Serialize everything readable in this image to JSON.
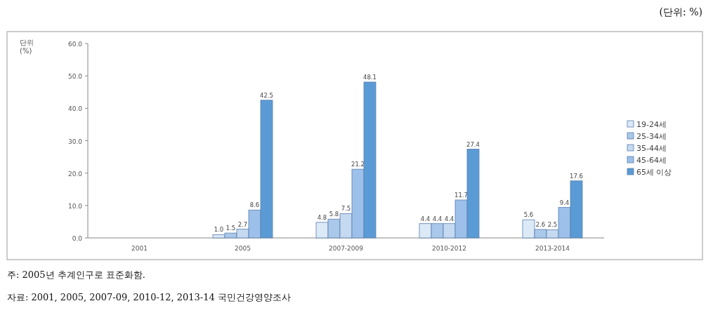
{
  "chart_data": {
    "type": "bar",
    "categories": [
      "2001",
      "2005",
      "2007-2009",
      "2010-2012",
      "2013-2014"
    ],
    "series": [
      {
        "name": "19-24세",
        "color": "#dce9f7",
        "values": [
          null,
          1.0,
          4.8,
          4.4,
          5.6
        ],
        "value_labels": [
          null,
          "1.0",
          "4.8",
          "4.4",
          "5.6"
        ]
      },
      {
        "name": "25-34세",
        "color": "#a9c8ea",
        "values": [
          null,
          1.5,
          5.8,
          4.4,
          2.6
        ],
        "value_labels": [
          null,
          "1.5",
          "5.8",
          "4.4",
          "2.6"
        ]
      },
      {
        "name": "35-44세",
        "color": "#c5d9f1",
        "values": [
          null,
          2.7,
          7.5,
          4.4,
          2.5
        ],
        "value_labels": [
          null,
          "2.7",
          "7.5",
          "4.4",
          "2.5"
        ]
      },
      {
        "name": "45-64세",
        "color": "#9dc0ea",
        "values": [
          null,
          8.6,
          21.2,
          11.7,
          9.4
        ],
        "value_labels": [
          null,
          "8.6",
          "21.2",
          "11.7",
          "9.4"
        ]
      },
      {
        "name": "65세 이상",
        "color": "#5b9bd5",
        "values": [
          null,
          42.5,
          48.1,
          27.4,
          17.6
        ],
        "value_labels": [
          null,
          "42.5",
          "48.1",
          "27.4",
          "17.6"
        ]
      }
    ],
    "ylim": [
      0,
      60
    ],
    "yticks": [
      {
        "value": 0,
        "label": "0.0"
      },
      {
        "value": 10,
        "label": "10.0"
      },
      {
        "value": 20,
        "label": "20.0"
      },
      {
        "value": 30,
        "label": "30.0"
      },
      {
        "value": 40,
        "label": "40.0"
      },
      {
        "value": 50,
        "label": "50.0"
      },
      {
        "value": 60,
        "label": "60.0"
      }
    ],
    "legend": "right",
    "annotations": [
      "(단위: %)",
      "단위\n(%)",
      "주: 2005년 추계인구로 표준화함.",
      "자료: 2001, 2005, 2007-09, 2010-12, 2013-14 국민건강영양조사"
    ]
  }
}
